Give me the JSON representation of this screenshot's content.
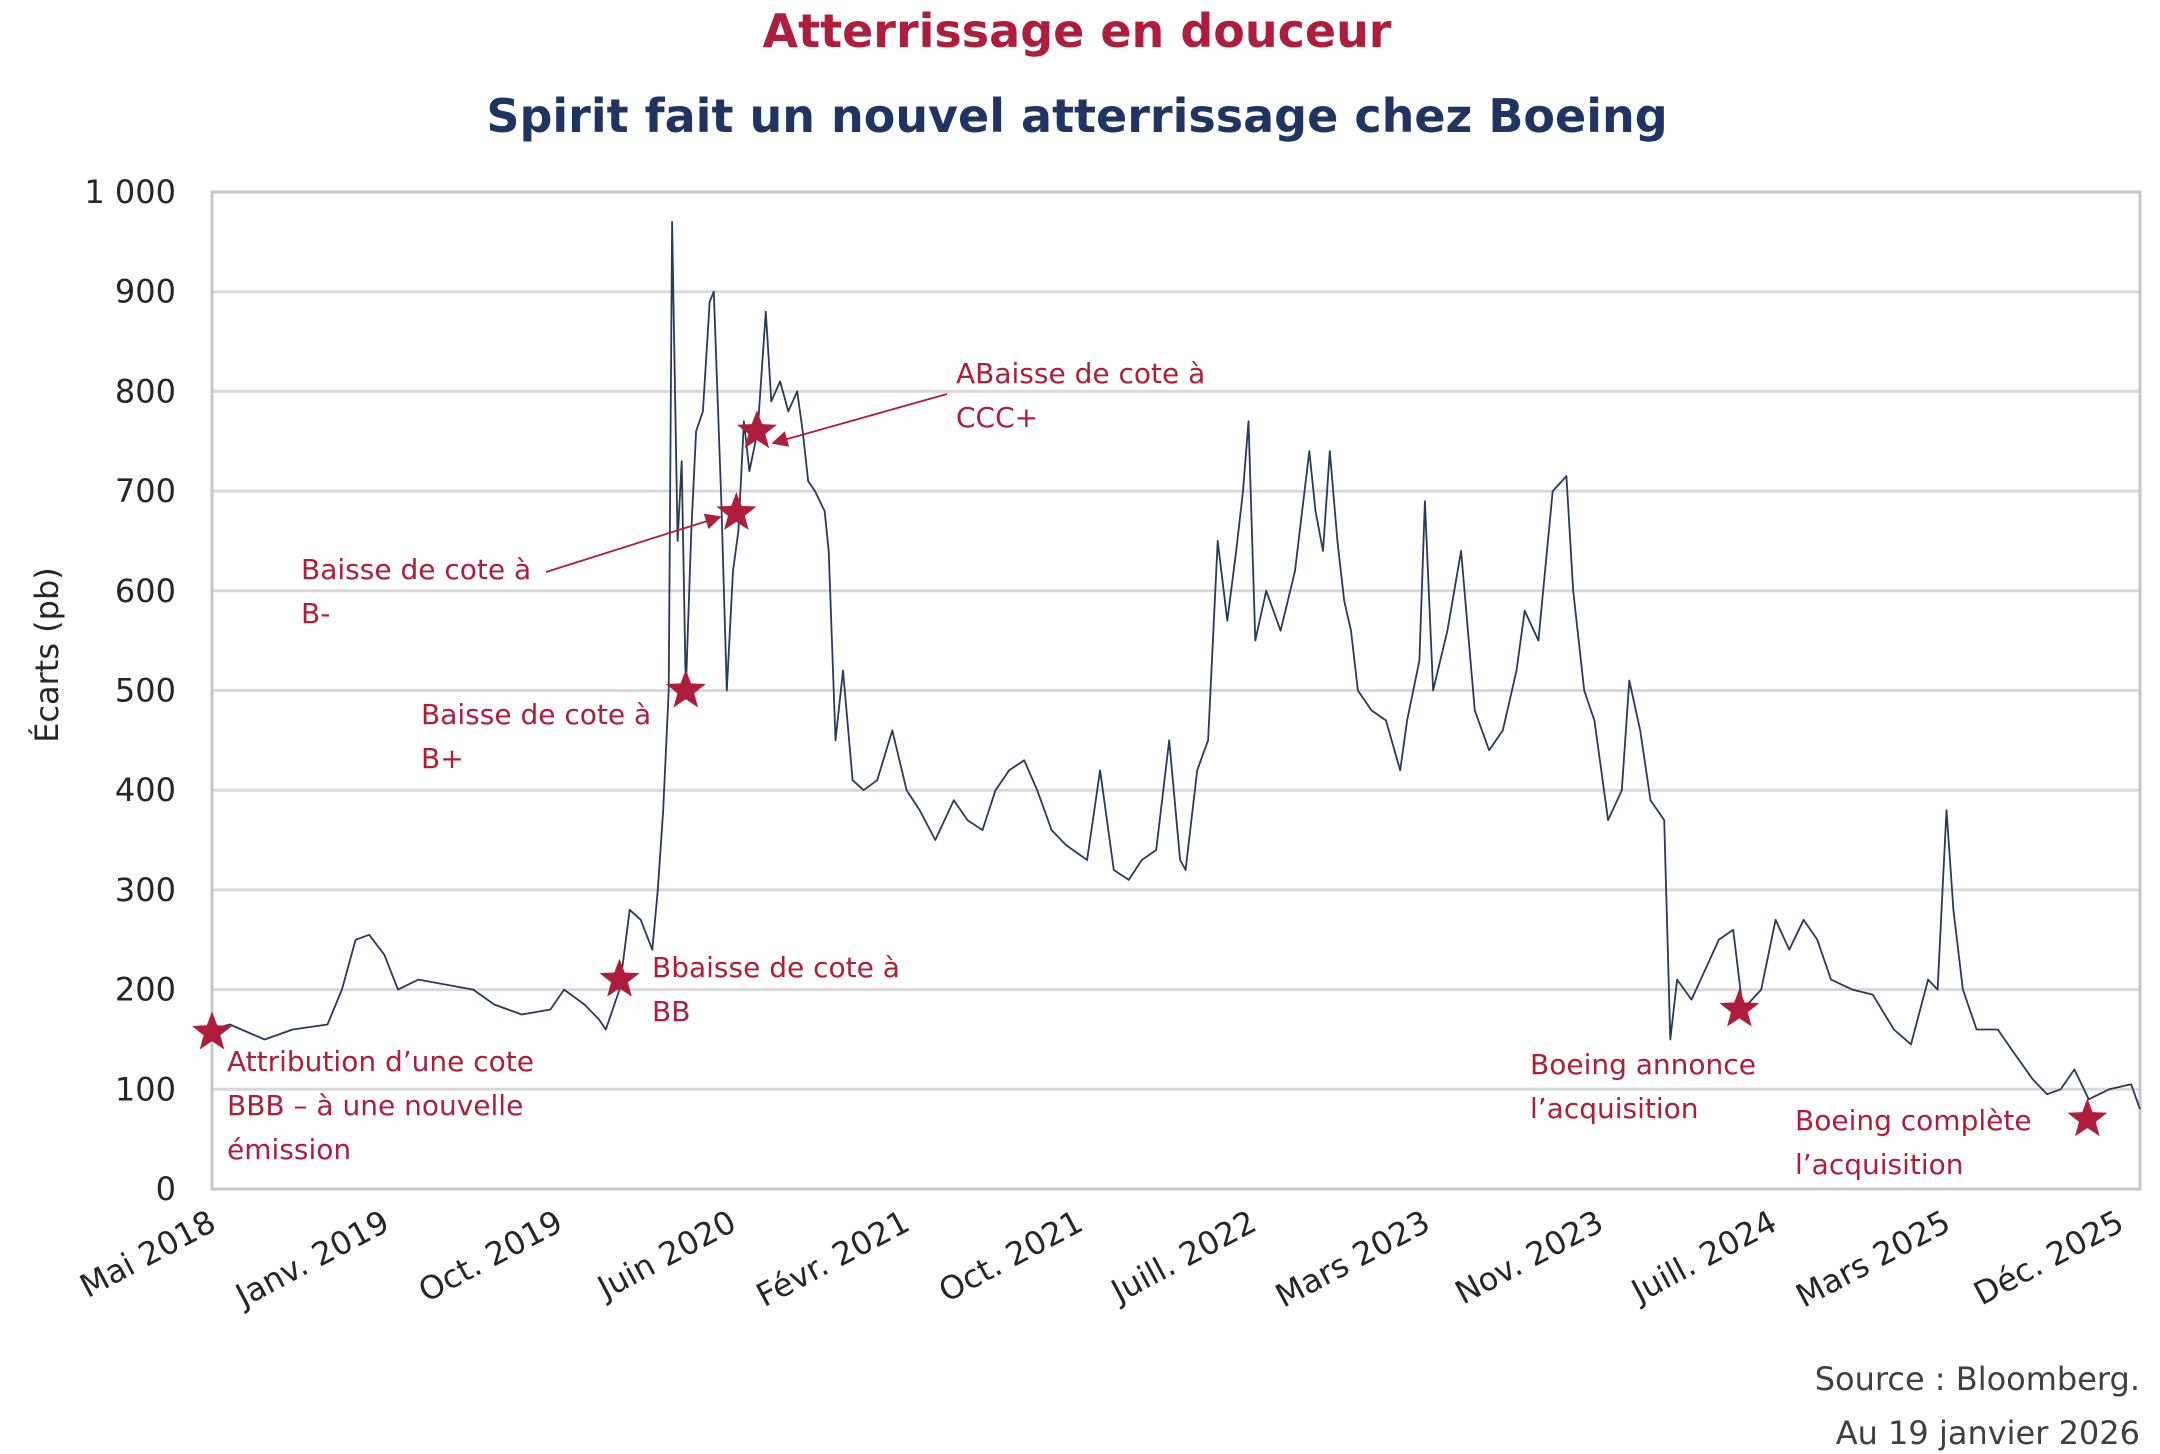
{
  "title": "Atterrissage en douceur",
  "subtitle": "Spirit fait un nouvel atterrissage chez Boeing",
  "source": "Source : Bloomberg.",
  "as_of": "Au 19 janvier 2026",
  "colors": {
    "title": "#b01c3c",
    "subtitle": "#1f3460",
    "line": "#2b3a55",
    "annotation": "#b01c3c",
    "grid": "#d9d9d9"
  },
  "chart_data": {
    "type": "line",
    "title": "Spirit fait un nouvel atterrissage chez Boeing",
    "xlabel": "",
    "ylabel": "Écarts (pb)",
    "ylim": [
      0,
      1000
    ],
    "xlim": [
      "2018-05-01",
      "2026-01-19"
    ],
    "grid": true,
    "legend": "none",
    "yticks": [
      "0",
      "100",
      "200",
      "300",
      "400",
      "500",
      "600",
      "700",
      "800",
      "900",
      "1 000"
    ],
    "xticks": [
      "Mai 2018",
      "Janv. 2019",
      "Oct. 2019",
      "Juin 2020",
      "Févr. 2021",
      "Oct. 2021",
      "Juill. 2022",
      "Mars 2023",
      "Nov. 2023",
      "Juill. 2024",
      "Mars 2025",
      "Déc. 2025"
    ],
    "series": [
      {
        "points": [
          [
            "2018-05-01",
            160
          ],
          [
            "2018-05-27",
            165
          ],
          [
            "2018-07-17",
            150
          ],
          [
            "2018-08-27",
            160
          ],
          [
            "2018-10-17",
            165
          ],
          [
            "2018-11-07",
            200
          ],
          [
            "2018-11-27",
            250
          ],
          [
            "2018-12-17",
            255
          ],
          [
            "2019-01-08",
            235
          ],
          [
            "2019-01-28",
            200
          ],
          [
            "2019-02-27",
            210
          ],
          [
            "2019-04-08",
            205
          ],
          [
            "2019-05-18",
            200
          ],
          [
            "2019-06-18",
            185
          ],
          [
            "2019-07-28",
            175
          ],
          [
            "2019-09-08",
            180
          ],
          [
            "2019-09-28",
            200
          ],
          [
            "2019-10-28",
            185
          ],
          [
            "2019-11-18",
            170
          ],
          [
            "2019-11-28",
            160
          ],
          [
            "2019-12-18",
            200
          ],
          [
            "2020-01-02",
            280
          ],
          [
            "2020-01-18",
            270
          ],
          [
            "2020-02-04",
            240
          ],
          [
            "2020-02-12",
            300
          ],
          [
            "2020-02-20",
            380
          ],
          [
            "2020-02-28",
            500
          ],
          [
            "2020-03-04",
            970
          ],
          [
            "2020-03-12",
            650
          ],
          [
            "2020-03-18",
            730
          ],
          [
            "2020-03-24",
            500
          ],
          [
            "2020-04-01",
            660
          ],
          [
            "2020-04-08",
            760
          ],
          [
            "2020-04-18",
            780
          ],
          [
            "2020-04-28",
            890
          ],
          [
            "2020-05-04",
            900
          ],
          [
            "2020-05-15",
            690
          ],
          [
            "2020-05-23",
            500
          ],
          [
            "2020-06-01",
            620
          ],
          [
            "2020-06-09",
            660
          ],
          [
            "2020-06-17",
            770
          ],
          [
            "2020-06-25",
            720
          ],
          [
            "2020-07-07",
            760
          ],
          [
            "2020-07-19",
            880
          ],
          [
            "2020-07-27",
            790
          ],
          [
            "2020-08-09",
            810
          ],
          [
            "2020-08-21",
            780
          ],
          [
            "2020-09-03",
            800
          ],
          [
            "2020-09-11",
            760
          ],
          [
            "2020-09-19",
            710
          ],
          [
            "2020-09-29",
            700
          ],
          [
            "2020-10-13",
            680
          ],
          [
            "2020-10-19",
            640
          ],
          [
            "2020-10-29",
            450
          ],
          [
            "2020-11-09",
            520
          ],
          [
            "2020-11-23",
            410
          ],
          [
            "2020-12-09",
            400
          ],
          [
            "2020-12-29",
            410
          ],
          [
            "2021-01-20",
            460
          ],
          [
            "2021-02-10",
            400
          ],
          [
            "2021-03-01",
            380
          ],
          [
            "2021-03-24",
            350
          ],
          [
            "2021-04-20",
            390
          ],
          [
            "2021-05-10",
            370
          ],
          [
            "2021-06-01",
            360
          ],
          [
            "2021-06-20",
            400
          ],
          [
            "2021-07-10",
            420
          ],
          [
            "2021-08-01",
            430
          ],
          [
            "2021-08-20",
            400
          ],
          [
            "2021-09-10",
            360
          ],
          [
            "2021-10-01",
            345
          ],
          [
            "2021-11-01",
            330
          ],
          [
            "2021-11-20",
            420
          ],
          [
            "2021-12-10",
            320
          ],
          [
            "2022-01-01",
            310
          ],
          [
            "2022-01-20",
            330
          ],
          [
            "2022-02-10",
            340
          ],
          [
            "2022-03-01",
            450
          ],
          [
            "2022-03-17",
            330
          ],
          [
            "2022-03-25",
            320
          ],
          [
            "2022-04-11",
            420
          ],
          [
            "2022-04-27",
            450
          ],
          [
            "2022-05-11",
            650
          ],
          [
            "2022-05-25",
            570
          ],
          [
            "2022-06-07",
            640
          ],
          [
            "2022-06-17",
            700
          ],
          [
            "2022-06-25",
            770
          ],
          [
            "2022-07-05",
            550
          ],
          [
            "2022-07-21",
            600
          ],
          [
            "2022-08-11",
            560
          ],
          [
            "2022-09-01",
            620
          ],
          [
            "2022-09-22",
            740
          ],
          [
            "2022-10-01",
            680
          ],
          [
            "2022-10-12",
            640
          ],
          [
            "2022-10-22",
            740
          ],
          [
            "2022-11-02",
            650
          ],
          [
            "2022-11-12",
            590
          ],
          [
            "2022-11-22",
            560
          ],
          [
            "2022-12-02",
            500
          ],
          [
            "2022-12-22",
            480
          ],
          [
            "2023-01-12",
            470
          ],
          [
            "2023-02-02",
            420
          ],
          [
            "2023-02-12",
            470
          ],
          [
            "2023-03-02",
            530
          ],
          [
            "2023-03-10",
            690
          ],
          [
            "2023-03-22",
            500
          ],
          [
            "2023-04-12",
            560
          ],
          [
            "2023-05-02",
            640
          ],
          [
            "2023-05-12",
            560
          ],
          [
            "2023-05-22",
            480
          ],
          [
            "2023-06-12",
            440
          ],
          [
            "2023-07-02",
            460
          ],
          [
            "2023-07-22",
            520
          ],
          [
            "2023-08-03",
            580
          ],
          [
            "2023-08-23",
            550
          ],
          [
            "2023-09-13",
            700
          ],
          [
            "2023-10-03",
            715
          ],
          [
            "2023-10-13",
            600
          ],
          [
            "2023-10-29",
            500
          ],
          [
            "2023-11-13",
            470
          ],
          [
            "2023-12-03",
            370
          ],
          [
            "2023-12-23",
            400
          ],
          [
            "2024-01-03",
            510
          ],
          [
            "2024-01-19",
            460
          ],
          [
            "2024-02-03",
            390
          ],
          [
            "2024-02-23",
            370
          ],
          [
            "2024-03-03",
            150
          ],
          [
            "2024-03-13",
            210
          ],
          [
            "2024-04-03",
            190
          ],
          [
            "2024-04-23",
            220
          ],
          [
            "2024-05-13",
            250
          ],
          [
            "2024-06-03",
            260
          ],
          [
            "2024-06-17",
            180
          ],
          [
            "2024-07-14",
            200
          ],
          [
            "2024-08-04",
            270
          ],
          [
            "2024-08-24",
            240
          ],
          [
            "2024-09-14",
            270
          ],
          [
            "2024-10-04",
            250
          ],
          [
            "2024-10-24",
            210
          ],
          [
            "2024-11-24",
            200
          ],
          [
            "2024-12-24",
            195
          ],
          [
            "2025-01-24",
            160
          ],
          [
            "2025-02-18",
            145
          ],
          [
            "2025-03-15",
            210
          ],
          [
            "2025-03-29",
            200
          ],
          [
            "2025-04-11",
            380
          ],
          [
            "2025-04-21",
            280
          ],
          [
            "2025-05-05",
            200
          ],
          [
            "2025-05-25",
            160
          ],
          [
            "2025-06-25",
            160
          ],
          [
            "2025-07-15",
            140
          ],
          [
            "2025-08-15",
            110
          ],
          [
            "2025-09-05",
            95
          ],
          [
            "2025-09-25",
            100
          ],
          [
            "2025-10-15",
            120
          ],
          [
            "2025-11-05",
            90
          ],
          [
            "2025-12-05",
            100
          ],
          [
            "2026-01-06",
            105
          ],
          [
            "2026-01-19",
            80
          ]
        ]
      }
    ],
    "annotations": [
      {
        "date": "2018-05-01",
        "value": 157,
        "lines": [
          "Attribution d’une cote",
          "BBB – à une nouvelle",
          "émission"
        ]
      },
      {
        "date": "2019-12-18",
        "value": 210,
        "lines": [
          "Bbaisse de cote à",
          "BB"
        ]
      },
      {
        "date": "2020-03-24",
        "value": 500,
        "lines": [
          "Baisse de  cote à",
          "B+"
        ]
      },
      {
        "date": "2020-06-06",
        "value": 678,
        "lines": [
          "Baisse de  cote à",
          "B-"
        ]
      },
      {
        "date": "2020-07-06",
        "value": 760,
        "lines": [
          "ABaisse de  cote à",
          "CCC+"
        ]
      },
      {
        "date": "2024-06-12",
        "value": 180,
        "lines": [
          "Boeing annonce",
          "l’acquisition"
        ]
      },
      {
        "date": "2025-11-03",
        "value": 70,
        "lines": [
          "Boeing complète",
          "l’acquisition"
        ]
      }
    ]
  }
}
